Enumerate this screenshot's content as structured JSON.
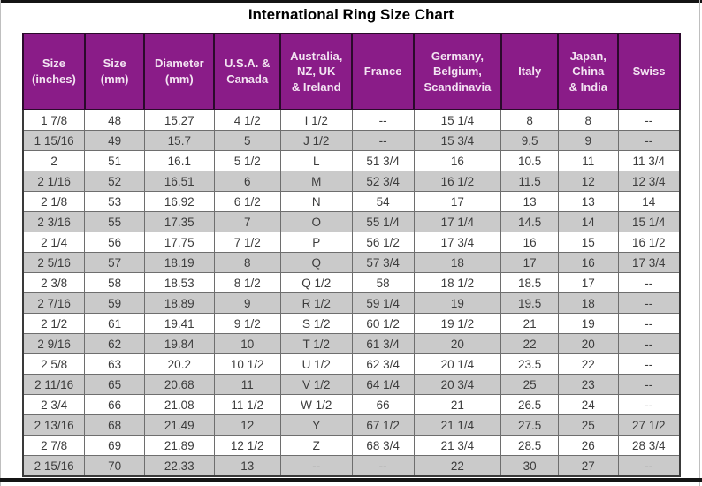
{
  "title": "International Ring Size Chart",
  "colors": {
    "header_bg": "#8a1c88",
    "header_text": "#f3e4f2",
    "row_stripe": "#cacaca",
    "grid_line": "#6e6e6e",
    "outer_border": "#3a3a3a",
    "body_text": "#3c3c3c",
    "frame_rule": "#141414"
  },
  "chart_data": {
    "type": "table",
    "title": "International Ring Size Chart",
    "columns": [
      "Size\n(inches)",
      "Size\n(mm)",
      "Diameter\n(mm)",
      "U.S.A. &\nCanada",
      "Australia,\nNZ, UK\n& Ireland",
      "France",
      "Germany,\nBelgium,\nScandinavia",
      "Italy",
      "Japan,\nChina\n& India",
      "Swiss"
    ],
    "rows": [
      [
        "1 7/8",
        "48",
        "15.27",
        "4 1/2",
        "I 1/2",
        "--",
        "15 1/4",
        "8",
        "8",
        "--"
      ],
      [
        "1 15/16",
        "49",
        "15.7",
        "5",
        "J 1/2",
        "--",
        "15 3/4",
        "9.5",
        "9",
        "--"
      ],
      [
        "2",
        "51",
        "16.1",
        "5 1/2",
        "L",
        "51 3/4",
        "16",
        "10.5",
        "11",
        "11 3/4"
      ],
      [
        "2 1/16",
        "52",
        "16.51",
        "6",
        "M",
        "52 3/4",
        "16 1/2",
        "11.5",
        "12",
        "12 3/4"
      ],
      [
        "2 1/8",
        "53",
        "16.92",
        "6 1/2",
        "N",
        "54",
        "17",
        "13",
        "13",
        "14"
      ],
      [
        "2 3/16",
        "55",
        "17.35",
        "7",
        "O",
        "55 1/4",
        "17 1/4",
        "14.5",
        "14",
        "15 1/4"
      ],
      [
        "2 1/4",
        "56",
        "17.75",
        "7 1/2",
        "P",
        "56 1/2",
        "17 3/4",
        "16",
        "15",
        "16 1/2"
      ],
      [
        "2 5/16",
        "57",
        "18.19",
        "8",
        "Q",
        "57 3/4",
        "18",
        "17",
        "16",
        "17 3/4"
      ],
      [
        "2 3/8",
        "58",
        "18.53",
        "8 1/2",
        "Q 1/2",
        "58",
        "18 1/2",
        "18.5",
        "17",
        "--"
      ],
      [
        "2 7/16",
        "59",
        "18.89",
        "9",
        "R 1/2",
        "59 1/4",
        "19",
        "19.5",
        "18",
        "--"
      ],
      [
        "2 1/2",
        "61",
        "19.41",
        "9 1/2",
        "S 1/2",
        "60 1/2",
        "19 1/2",
        "21",
        "19",
        "--"
      ],
      [
        "2 9/16",
        "62",
        "19.84",
        "10",
        "T 1/2",
        "61 3/4",
        "20",
        "22",
        "20",
        "--"
      ],
      [
        "2 5/8",
        "63",
        "20.2",
        "10 1/2",
        "U 1/2",
        "62 3/4",
        "20 1/4",
        "23.5",
        "22",
        "--"
      ],
      [
        "2 11/16",
        "65",
        "20.68",
        "11",
        "V 1/2",
        "64 1/4",
        "20 3/4",
        "25",
        "23",
        "--"
      ],
      [
        "2 3/4",
        "66",
        "21.08",
        "11 1/2",
        "W 1/2",
        "66",
        "21",
        "26.5",
        "24",
        "--"
      ],
      [
        "2 13/16",
        "68",
        "21.49",
        "12",
        "Y",
        "67 1/2",
        "21 1/4",
        "27.5",
        "25",
        "27 1/2"
      ],
      [
        "2 7/8",
        "69",
        "21.89",
        "12 1/2",
        "Z",
        "68 3/4",
        "21 3/4",
        "28.5",
        "26",
        "28 3/4"
      ],
      [
        "2 15/16",
        "70",
        "22.33",
        "13",
        "--",
        "--",
        "22",
        "30",
        "27",
        "--"
      ]
    ],
    "column_widths_pct": [
      9.4,
      9.1,
      10.6,
      10.1,
      10.9,
      9.4,
      13.3,
      8.7,
      9.1,
      9.4
    ],
    "layout": {
      "striped_rows": true,
      "stripe_start": "second-row",
      "grid": true
    }
  }
}
